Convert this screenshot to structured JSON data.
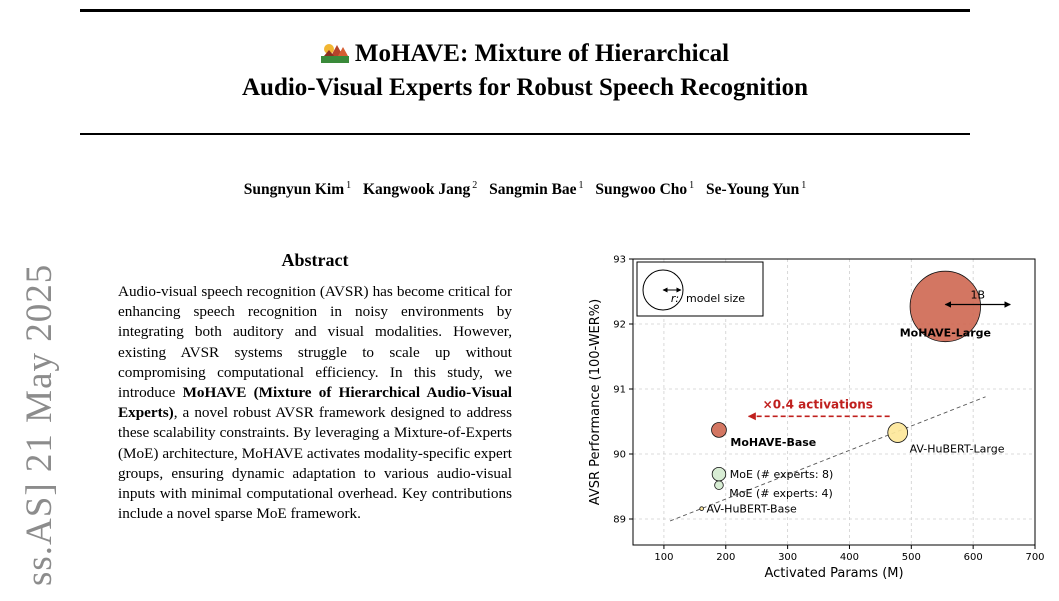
{
  "paper": {
    "title_line1": "MoHAVE: Mixture of Hierarchical",
    "title_line2": "Audio-Visual Experts for Robust Speech Recognition",
    "logo_icon": "landscape-logo-icon",
    "authors": [
      {
        "name": "Sungnyun Kim",
        "aff": "1"
      },
      {
        "name": "Kangwook Jang",
        "aff": "2"
      },
      {
        "name": "Sangmin Bae",
        "aff": "1"
      },
      {
        "name": "Sungwoo Cho",
        "aff": "1"
      },
      {
        "name": "Se-Young Yun",
        "aff": "1"
      }
    ],
    "arxiv_stamp": "ss.AS]  21 May 2025",
    "abstract_heading": "Abstract",
    "abstract_p1": "Audio-visual speech recognition (AVSR) has become critical for enhancing speech recognition in noisy environments by integrating both auditory and visual modalities. However, existing AVSR systems struggle to scale up without compromising computational efficiency. In this study, we introduce ",
    "abstract_bold": "MoHAVE (Mixture of Hierarchical Audio-Visual Experts)",
    "abstract_p2": ", a novel robust AVSR framework designed to address these scalability constraints. By leveraging a Mixture-of-Experts (MoE) architecture, MoHAVE activates modality-specific expert groups, ensuring dynamic adaptation to various audio-visual inputs with minimal computational overhead. Key contributions include a novel sparse MoE framework."
  },
  "chart_data": {
    "type": "scatter",
    "xlabel": "Activated Params (M)",
    "ylabel": "AVSR Performance (100-WER%)",
    "xlim": [
      50,
      700
    ],
    "ylim": [
      88.6,
      93
    ],
    "xticks": [
      100,
      200,
      300,
      400,
      500,
      600,
      700
    ],
    "yticks": [
      89,
      90,
      91,
      92,
      93
    ],
    "grid": true,
    "points": [
      {
        "label": "MoHAVE-Large",
        "x": 555,
        "y": 92.27,
        "size_b": 0.57,
        "color": "#cf6a55",
        "label_style": "bold-inside"
      },
      {
        "label": "MoHAVE-Base",
        "x": 189,
        "y": 90.37,
        "size_b": 0.12,
        "color": "#cf6a55",
        "label_style": "bold-right"
      },
      {
        "label": "AV-HuBERT-Large",
        "x": 478,
        "y": 90.33,
        "size_b": 0.16,
        "color": "#fde79a",
        "label_style": "right"
      },
      {
        "label": "MoE (# experts: 8)",
        "x": 189,
        "y": 89.69,
        "size_b": 0.11,
        "color": "#d5ecd0",
        "label_style": "right"
      },
      {
        "label": "MoE (# experts: 4)",
        "x": 189,
        "y": 89.52,
        "size_b": 0.07,
        "color": "#d5ecd0",
        "label_style": "right"
      },
      {
        "label": "AV-HuBERT-Base",
        "x": 161,
        "y": 89.16,
        "size_b": 0.03,
        "color": "#fde79a",
        "label_style": "right"
      }
    ],
    "trendline": {
      "x": [
        110,
        620
      ],
      "y": [
        88.97,
        90.88
      ]
    },
    "annotation": {
      "text": "×0.4 activations",
      "from": [
        465,
        90.58
      ],
      "to": [
        237,
        90.58
      ],
      "color": "#c0201e"
    },
    "size_legend": {
      "label": "model size",
      "radius_symbol": "r:"
    },
    "scale_bar": {
      "label": "1B",
      "from": 555,
      "to": 660,
      "y": 92.3
    }
  }
}
